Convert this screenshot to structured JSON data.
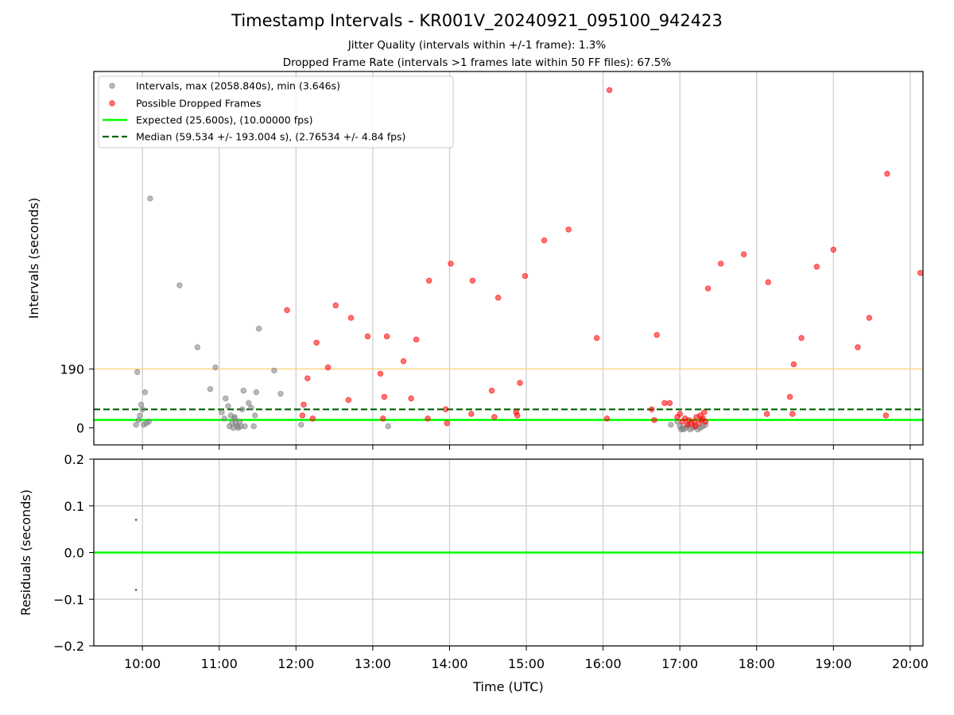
{
  "figure": {
    "title": "Timestamp Intervals - KR001V_20240921_095100_942423",
    "subtitle_1": "Jitter Quality (intervals within +/-1 frame): 1.3%",
    "subtitle_2": "Dropped Frame Rate (intervals >1 frames late within 50 FF files): 67.5%"
  },
  "colors": {
    "intervals": "#808080",
    "dropped": "#ff0000",
    "expected": "#00ff00",
    "median": "#006400",
    "threshold": "#ffd27f",
    "grid": "#cccccc"
  },
  "chart_data": [
    {
      "type": "scatter",
      "title": "",
      "xlabel": "",
      "ylabel": "Intervals (seconds)",
      "x_range": [
        "09:22",
        "20:10"
      ],
      "ylim": [
        -55,
        1150
      ],
      "x_ticks": [
        "10:00",
        "11:00",
        "12:00",
        "13:00",
        "14:00",
        "15:00",
        "16:00",
        "17:00",
        "18:00",
        "19:00",
        "20:00"
      ],
      "y_ticks": [
        0,
        190
      ],
      "grid": "x",
      "legend_position": "upper-left",
      "legend": [
        "Intervals, max (2058.840s), min (3.646s)",
        "Possible Dropped Frames",
        "Expected (25.600s), (10.00000 fps)",
        "Median (59.534 +/- 193.004 s), (2.76534 +/- 4.84 fps)"
      ],
      "lines": {
        "expected": 25.6,
        "median": 59.534,
        "threshold": 190
      },
      "series": [
        {
          "role": "intervals",
          "points": [
            [
              "09:55",
              10
            ],
            [
              "09:56",
              180
            ],
            [
              "09:57",
              25
            ],
            [
              "09:58",
              40
            ],
            [
              "09:59",
              75
            ],
            [
              "10:00",
              60
            ],
            [
              "10:01",
              10
            ],
            [
              "10:02",
              115
            ],
            [
              "10:03",
              15
            ],
            [
              "10:05",
              20
            ],
            [
              "10:06",
              740
            ],
            [
              "10:29",
              460
            ],
            [
              "10:43",
              260
            ],
            [
              "10:53",
              125
            ],
            [
              "10:57",
              195
            ],
            [
              "11:02",
              50
            ],
            [
              "11:04",
              30
            ],
            [
              "11:05",
              95
            ],
            [
              "11:07",
              70
            ],
            [
              "11:08",
              5
            ],
            [
              "11:09",
              40
            ],
            [
              "11:10",
              15
            ],
            [
              "11:11",
              0
            ],
            [
              "11:12",
              30
            ],
            [
              "11:12",
              35
            ],
            [
              "11:13",
              15
            ],
            [
              "11:14",
              5
            ],
            [
              "11:15",
              0
            ],
            [
              "11:16",
              20
            ],
            [
              "11:17",
              5
            ],
            [
              "11:18",
              60
            ],
            [
              "11:19",
              120
            ],
            [
              "11:20",
              5
            ],
            [
              "11:23",
              80
            ],
            [
              "11:25",
              65
            ],
            [
              "11:27",
              5
            ],
            [
              "11:28",
              40
            ],
            [
              "11:29",
              115
            ],
            [
              "11:31",
              320
            ],
            [
              "11:43",
              185
            ],
            [
              "11:48",
              110
            ],
            [
              "12:04",
              10
            ],
            [
              "13:12",
              5
            ],
            [
              "16:53",
              10
            ],
            [
              "16:58",
              20
            ],
            [
              "17:00",
              5
            ],
            [
              "17:01",
              -5
            ],
            [
              "17:02",
              0
            ],
            [
              "17:03",
              -5
            ],
            [
              "17:05",
              0
            ],
            [
              "17:06",
              10
            ],
            [
              "17:08",
              -5
            ],
            [
              "17:10",
              0
            ],
            [
              "17:12",
              5
            ],
            [
              "17:14",
              -5
            ],
            [
              "17:16",
              0
            ],
            [
              "17:18",
              5
            ],
            [
              "17:20",
              10
            ]
          ]
        },
        {
          "role": "dropped",
          "points": [
            [
              "11:53",
              380
            ],
            [
              "12:05",
              40
            ],
            [
              "12:06",
              75
            ],
            [
              "12:09",
              160
            ],
            [
              "12:13",
              30
            ],
            [
              "12:16",
              275
            ],
            [
              "12:25",
              195
            ],
            [
              "12:31",
              395
            ],
            [
              "12:41",
              90
            ],
            [
              "12:43",
              355
            ],
            [
              "12:56",
              295
            ],
            [
              "13:06",
              175
            ],
            [
              "13:08",
              30
            ],
            [
              "13:09",
              100
            ],
            [
              "13:11",
              295
            ],
            [
              "13:24",
              215
            ],
            [
              "13:30",
              95
            ],
            [
              "13:34",
              285
            ],
            [
              "13:43",
              30
            ],
            [
              "13:44",
              475
            ],
            [
              "13:57",
              60
            ],
            [
              "13:58",
              15
            ],
            [
              "14:01",
              530
            ],
            [
              "14:17",
              45
            ],
            [
              "14:18",
              475
            ],
            [
              "14:33",
              120
            ],
            [
              "14:35",
              35
            ],
            [
              "14:38",
              420
            ],
            [
              "14:52",
              50
            ],
            [
              "14:53",
              40
            ],
            [
              "14:55",
              145
            ],
            [
              "14:59",
              490
            ],
            [
              "15:14",
              605
            ],
            [
              "15:33",
              640
            ],
            [
              "15:55",
              290
            ],
            [
              "16:03",
              30
            ],
            [
              "16:05",
              1090
            ],
            [
              "16:38",
              60
            ],
            [
              "16:40",
              25
            ],
            [
              "16:42",
              300
            ],
            [
              "16:48",
              80
            ],
            [
              "16:52",
              80
            ],
            [
              "16:58",
              35
            ],
            [
              "17:00",
              45
            ],
            [
              "17:02",
              20
            ],
            [
              "17:04",
              30
            ],
            [
              "17:06",
              10
            ],
            [
              "17:07",
              25
            ],
            [
              "17:09",
              15
            ],
            [
              "17:11",
              20
            ],
            [
              "17:12",
              5
            ],
            [
              "17:13",
              35
            ],
            [
              "17:15",
              15
            ],
            [
              "17:16",
              40
            ],
            [
              "17:17",
              25
            ],
            [
              "17:18",
              30
            ],
            [
              "17:19",
              50
            ],
            [
              "17:20",
              20
            ],
            [
              "17:22",
              450
            ],
            [
              "17:32",
              530
            ],
            [
              "17:50",
              560
            ],
            [
              "18:08",
              45
            ],
            [
              "18:09",
              470
            ],
            [
              "18:26",
              100
            ],
            [
              "18:28",
              45
            ],
            [
              "18:29",
              205
            ],
            [
              "18:35",
              290
            ],
            [
              "18:47",
              520
            ],
            [
              "19:00",
              575
            ],
            [
              "19:19",
              260
            ],
            [
              "19:28",
              355
            ],
            [
              "19:41",
              40
            ],
            [
              "19:42",
              820
            ],
            [
              "20:08",
              500
            ]
          ]
        }
      ]
    },
    {
      "type": "scatter",
      "title": "",
      "xlabel": "Time (UTC)",
      "ylabel": "Residuals (seconds)",
      "x_range": [
        "09:22",
        "20:10"
      ],
      "ylim": [
        -0.2,
        0.2
      ],
      "x_ticks": [
        "10:00",
        "11:00",
        "12:00",
        "13:00",
        "14:00",
        "15:00",
        "16:00",
        "17:00",
        "18:00",
        "19:00",
        "20:00"
      ],
      "y_ticks": [
        "0.2",
        "0.1",
        "0.0",
        "−0.1",
        "−0.2"
      ],
      "y_tick_values": [
        0.2,
        0.1,
        0.0,
        -0.1,
        -0.2
      ],
      "grid": "both",
      "zero_line": 0,
      "points": [
        [
          "09:55",
          0.07
        ],
        [
          "09:55",
          -0.08
        ]
      ]
    }
  ]
}
